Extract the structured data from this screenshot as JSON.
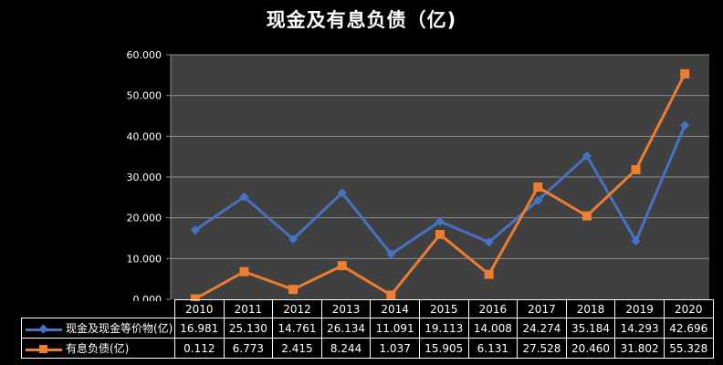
{
  "title": "现金及有息负债（亿)",
  "colors": {
    "background": "#000000",
    "plot_background": "#404040",
    "grid": "#8c8c8c",
    "series_cash": "#4472c4",
    "series_debt": "#ed7d31"
  },
  "y_axis": {
    "ticks": [
      "0.000",
      "10.000",
      "20.000",
      "30.000",
      "40.000",
      "50.000",
      "60.000"
    ]
  },
  "table": {
    "years": [
      "2010",
      "2011",
      "2012",
      "2013",
      "2014",
      "2015",
      "2016",
      "2017",
      "2018",
      "2019",
      "2020"
    ],
    "rows": [
      {
        "label": "现金及现金等价物(亿)",
        "marker": "diamond",
        "values": [
          "16.981",
          "25.130",
          "14.761",
          "26.134",
          "11.091",
          "19.113",
          "14.008",
          "24.274",
          "35.184",
          "14.293",
          "42.696"
        ]
      },
      {
        "label": "有息负债(亿)",
        "marker": "square",
        "values": [
          "0.112",
          "6.773",
          "2.415",
          "8.244",
          "1.037",
          "15.905",
          "6.131",
          "27.528",
          "20.460",
          "31.802",
          "55.328"
        ]
      }
    ]
  },
  "chart_data": {
    "type": "line",
    "title": "现金及有息负债（亿)",
    "categories": [
      "2010",
      "2011",
      "2012",
      "2013",
      "2014",
      "2015",
      "2016",
      "2017",
      "2018",
      "2019",
      "2020"
    ],
    "series": [
      {
        "name": "现金及现金等价物(亿)",
        "color": "#4472c4",
        "marker": "diamond",
        "values": [
          16.981,
          25.13,
          14.761,
          26.134,
          11.091,
          19.113,
          14.008,
          24.274,
          35.184,
          14.293,
          42.696
        ]
      },
      {
        "name": "有息负债(亿)",
        "color": "#ed7d31",
        "marker": "square",
        "values": [
          0.112,
          6.773,
          2.415,
          8.244,
          1.037,
          15.905,
          6.131,
          27.528,
          20.46,
          31.802,
          55.328
        ]
      }
    ],
    "xlabel": "",
    "ylabel": "",
    "ylim": [
      0,
      60
    ],
    "yticks": [
      0,
      10,
      20,
      30,
      40,
      50,
      60
    ],
    "grid": true,
    "legend_position": "data-table-left"
  }
}
